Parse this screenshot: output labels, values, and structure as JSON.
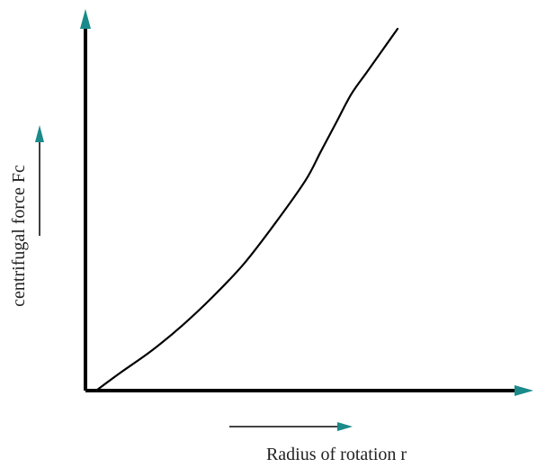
{
  "chart_data": {
    "type": "line",
    "title": "",
    "xlabel": "Radius of rotation r",
    "ylabel": "centrifugal force Fc",
    "grid": false,
    "legend": "none",
    "x_ticks": [],
    "y_ticks": [],
    "series": [
      {
        "x": [
          0.02,
          0.1,
          0.2,
          0.3,
          0.4,
          0.5,
          0.6,
          0.7,
          0.75,
          0.8,
          0.85,
          0.9,
          0.95,
          1.0
        ],
        "y": [
          0.0,
          0.05,
          0.11,
          0.18,
          0.26,
          0.35,
          0.46,
          0.58,
          0.66,
          0.74,
          0.82,
          0.88,
          0.94,
          1.0
        ]
      }
    ]
  },
  "colors": {
    "axis": "#000000",
    "curve": "#000000",
    "arrow_accent": "#1a8a8a",
    "text": "#222222"
  }
}
